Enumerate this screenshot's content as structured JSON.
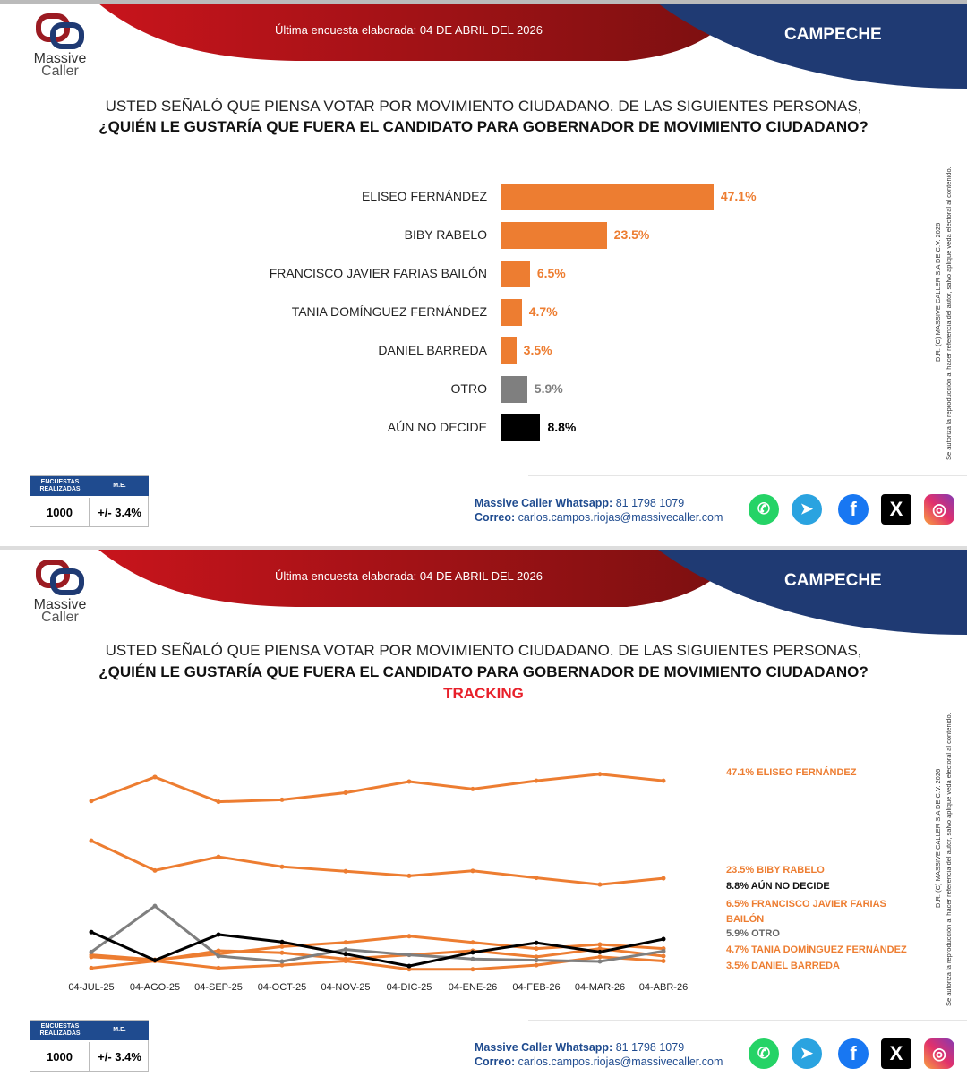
{
  "header": {
    "last_survey": "Última encuesta elaborada: 04 DE ABRIL DEL 2026",
    "state": "CAMPECHE",
    "logo_line1": "Massive",
    "logo_line2": "Caller"
  },
  "question": {
    "line1": "USTED SEÑALÓ QUE PIENSA VOTAR POR MOVIMIENTO CIUDADANO. DE LAS SIGUIENTES PERSONAS,",
    "line2": "¿QUIÉN LE GUSTARÍA QUE FUERA EL CANDIDATO PARA GOBERNADOR DE MOVIMIENTO CIUDADANO?",
    "tracking": "TRACKING"
  },
  "copyright": {
    "line1": "D.R. (C) MASSIVE CALLER S.A DE C.V. 2026",
    "line2": "Se autoriza la reproducción al hacer referencia del autor, salvo aplique veda electoral al contenido."
  },
  "stats": {
    "surveys_label": "ENCUESTAS REALIZADAS",
    "surveys": "1000",
    "me_label": "M.E.",
    "me": "+/- 3.4%"
  },
  "contact": {
    "whatsapp_label": "Massive Caller Whatsapp:",
    "whatsapp": "81 1798 1079",
    "email_label": "Correo:",
    "email": "carlos.campos.riojas@massivecaller.com"
  },
  "social": [
    "whatsapp",
    "telegram",
    "facebook",
    "x",
    "instagram"
  ],
  "colors": {
    "orange": "#ed7d31",
    "gray": "#7f7f7f",
    "black": "#000000",
    "navy": "#1f3a73",
    "red": "#b3141c"
  },
  "chart_data": [
    {
      "type": "bar",
      "orientation": "horizontal",
      "unit": "%",
      "categories": [
        "ELISEO FERNÁNDEZ",
        "BIBY RABELO",
        "FRANCISCO JAVIER FARIAS BAILÓN",
        "TANIA DOMÍNGUEZ FERNÁNDEZ",
        "DANIEL BARREDA",
        "OTRO",
        "AÚN NO DECIDE"
      ],
      "values": [
        47.1,
        23.5,
        6.5,
        4.7,
        3.5,
        5.9,
        8.8
      ],
      "labels": [
        "47.1%",
        "23.5%",
        "6.5%",
        "4.7%",
        "3.5%",
        "5.9%",
        "8.8%"
      ],
      "colors": [
        "#ed7d31",
        "#ed7d31",
        "#ed7d31",
        "#ed7d31",
        "#ed7d31",
        "#7f7f7f",
        "#000000"
      ]
    },
    {
      "type": "line",
      "title": "TRACKING",
      "x": [
        "04-JUL-25",
        "04-AGO-25",
        "04-SEP-25",
        "04-OCT-25",
        "04-NOV-25",
        "04-DIC-25",
        "04-ENE-26",
        "04-FEB-26",
        "04-MAR-26",
        "04-ABR-26"
      ],
      "ylim": [
        0,
        50
      ],
      "series": [
        {
          "name": "ELISEO FERNÁNDEZ",
          "legend": "47.1% ELISEO FERNÁNDEZ",
          "color": "#ed7d31",
          "values": [
            42.2,
            48.0,
            42.0,
            42.5,
            44.2,
            46.9,
            45.1,
            47.1,
            48.7,
            47.1
          ]
        },
        {
          "name": "BIBY RABELO",
          "legend": "23.5% BIBY RABELO",
          "color": "#ed7d31",
          "values": [
            32.6,
            25.4,
            28.7,
            26.3,
            25.2,
            24.1,
            25.3,
            23.6,
            22.0,
            23.5
          ]
        },
        {
          "name": "AÚN NO DECIDE",
          "legend": "8.8% AÚN NO DECIDE",
          "color": "#000000",
          "values": [
            10.5,
            3.7,
            9.9,
            8.1,
            5.2,
            2.3,
            5.6,
            7.9,
            5.7,
            8.8
          ]
        },
        {
          "name": "FRANCISCO JAVIER FARIAS BAILÓN",
          "legend": "6.5% FRANCISCO JAVIER FARIAS BAILÓN",
          "color": "#ed7d31",
          "values": [
            5.0,
            3.8,
            5.2,
            7.0,
            8.0,
            9.5,
            8.0,
            6.5,
            7.5,
            6.5
          ]
        },
        {
          "name": "OTRO",
          "legend": "5.9% OTRO",
          "color": "#7f7f7f",
          "values": [
            5.7,
            16.8,
            4.7,
            3.4,
            6.3,
            5.0,
            4.0,
            3.7,
            3.4,
            5.9
          ]
        },
        {
          "name": "TANIA DOMÍNGUEZ FERNÁNDEZ",
          "legend": "4.7% TANIA DOMÍNGUEZ FERNÁNDEZ",
          "color": "#ed7d31",
          "values": [
            4.5,
            3.6,
            6.0,
            5.5,
            4.0,
            5.0,
            6.0,
            4.5,
            6.5,
            4.7
          ]
        },
        {
          "name": "DANIEL BARREDA",
          "legend": "3.5% DANIEL BARREDA",
          "color": "#ed7d31",
          "values": [
            1.8,
            3.5,
            1.8,
            2.5,
            3.5,
            1.5,
            1.5,
            2.5,
            4.5,
            3.5
          ]
        }
      ]
    }
  ]
}
